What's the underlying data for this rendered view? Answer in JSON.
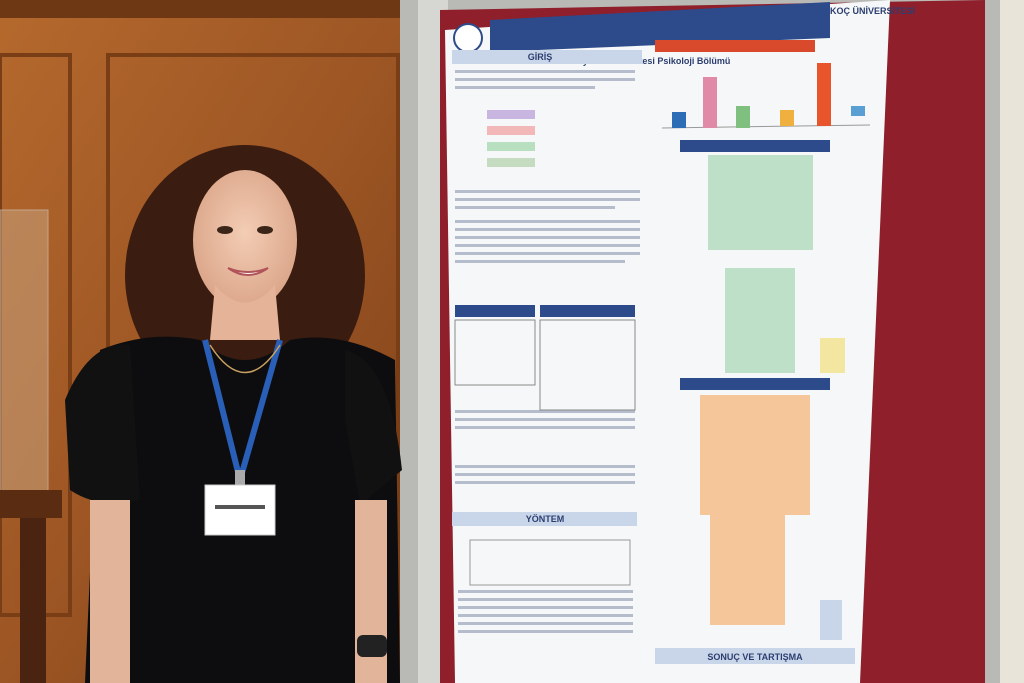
{
  "poster": {
    "institution": "KOÇ ÜNİVERSİTESİ",
    "department": "İstanbul Aydın Üniversitesi Psikoloji Bölümü",
    "sections": [
      "GİRİŞ",
      "YÖNTEM",
      "SONUÇ VE TARTIŞMA"
    ]
  }
}
